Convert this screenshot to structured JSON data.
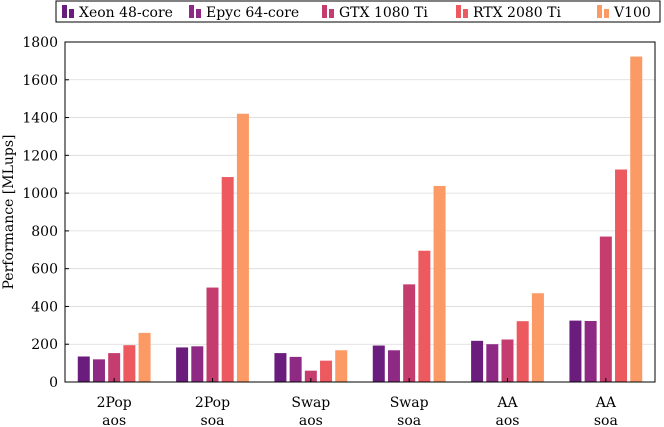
{
  "chart_data": {
    "type": "bar",
    "title": "",
    "xlabel": "",
    "ylabel": "Performance [MLups]",
    "ylim": [
      0,
      1800
    ],
    "yticks": [
      0,
      200,
      400,
      600,
      800,
      1000,
      1200,
      1400,
      1600,
      1800
    ],
    "grid": "horizontal",
    "legend_position": "top",
    "categories": [
      {
        "line1": "2Pop",
        "line2": "aos"
      },
      {
        "line1": "2Pop",
        "line2": "soa"
      },
      {
        "line1": "Swap",
        "line2": "aos"
      },
      {
        "line1": "Swap",
        "line2": "soa"
      },
      {
        "line1": "AA",
        "line2": "aos"
      },
      {
        "line1": "AA",
        "line2": "soa"
      }
    ],
    "series": [
      {
        "name": "Xeon 48-core",
        "color": "#6b1d7e",
        "values": [
          135,
          183,
          153,
          193,
          218,
          325
        ]
      },
      {
        "name": "Epyc 64-core",
        "color": "#8e2a83",
        "values": [
          120,
          189,
          133,
          168,
          200,
          323
        ]
      },
      {
        "name": "GTX 1080 Ti",
        "color": "#c53d6f",
        "values": [
          153,
          500,
          60,
          517,
          225,
          770
        ]
      },
      {
        "name": "RTX 2080 Ti",
        "color": "#ec5a5f",
        "values": [
          195,
          1085,
          113,
          695,
          322,
          1125
        ]
      },
      {
        "name": "V100",
        "color": "#fb9a64",
        "values": [
          260,
          1420,
          168,
          1038,
          470,
          1723
        ]
      }
    ]
  }
}
